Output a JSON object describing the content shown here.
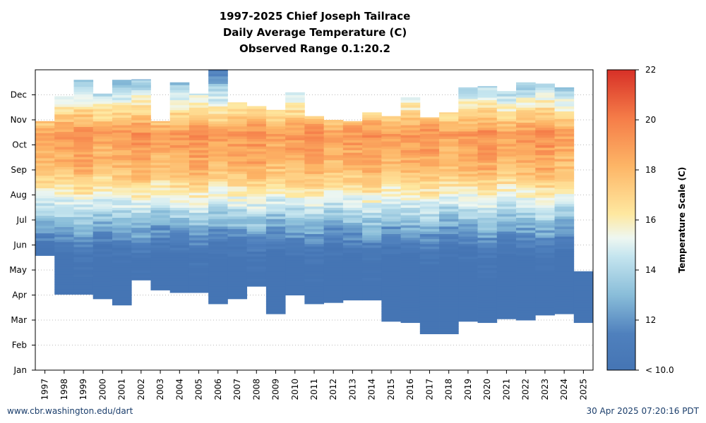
{
  "chart_data": {
    "type": "heatmap",
    "title": [
      "1997-2025 Chief Joseph Tailrace",
      "Daily Average Temperature (C)",
      "Observed Range 0.1:20.2"
    ],
    "x": [
      "1997",
      "1998",
      "1999",
      "2000",
      "2001",
      "2002",
      "2003",
      "2004",
      "2005",
      "2006",
      "2007",
      "2008",
      "2009",
      "2010",
      "2011",
      "2012",
      "2013",
      "2014",
      "2015",
      "2016",
      "2017",
      "2018",
      "2019",
      "2020",
      "2021",
      "2022",
      "2023",
      "2024",
      "2025"
    ],
    "y_ticks": [
      "Jan",
      "Feb",
      "Mar",
      "Apr",
      "May",
      "Jun",
      "Jul",
      "Aug",
      "Sep",
      "Oct",
      "Nov",
      "Dec"
    ],
    "colorbar": {
      "label": "Temperature Scale (C)",
      "min": 10,
      "max": 22,
      "ticks": [
        "< 10.0",
        "12",
        "14",
        "16",
        "18",
        "20",
        "22"
      ],
      "colors": [
        "#4575b4",
        "#74add1",
        "#abd9e9",
        "#e0f3f8",
        "#fee090",
        "#fdae61",
        "#f46d43",
        "#d73027"
      ]
    },
    "coverage_months": [
      {
        "year": "1997",
        "start": 4.58,
        "end": 9.95
      },
      {
        "year": "1998",
        "start": 3.03,
        "end": 10.95
      },
      {
        "year": "1999",
        "start": 3.03,
        "end": 11.6
      },
      {
        "year": "2000",
        "start": 2.85,
        "end": 11.05
      },
      {
        "year": "2001",
        "start": 2.6,
        "end": 11.6
      },
      {
        "year": "2002",
        "start": 3.6,
        "end": 11.62
      },
      {
        "year": "2003",
        "start": 3.2,
        "end": 9.95
      },
      {
        "year": "2004",
        "start": 3.1,
        "end": 11.5
      },
      {
        "year": "2005",
        "start": 3.1,
        "end": 11.05
      },
      {
        "year": "2006",
        "start": 2.65,
        "end": 12.0
      },
      {
        "year": "2007",
        "start": 2.85,
        "end": 10.7
      },
      {
        "year": "2008",
        "start": 3.35,
        "end": 10.55
      },
      {
        "year": "2009",
        "start": 2.25,
        "end": 10.4
      },
      {
        "year": "2010",
        "start": 3.0,
        "end": 11.1
      },
      {
        "year": "2011",
        "start": 2.65,
        "end": 10.15
      },
      {
        "year": "2012",
        "start": 2.7,
        "end": 10.0
      },
      {
        "year": "2013",
        "start": 2.8,
        "end": 9.95
      },
      {
        "year": "2014",
        "start": 2.8,
        "end": 10.3
      },
      {
        "year": "2015",
        "start": 1.95,
        "end": 10.15
      },
      {
        "year": "2016",
        "start": 1.9,
        "end": 10.9
      },
      {
        "year": "2017",
        "start": 1.45,
        "end": 10.1
      },
      {
        "year": "2018",
        "start": 1.45,
        "end": 10.3
      },
      {
        "year": "2019",
        "start": 1.95,
        "end": 11.3
      },
      {
        "year": "2020",
        "start": 1.9,
        "end": 11.35
      },
      {
        "year": "2021",
        "start": 2.05,
        "end": 11.15
      },
      {
        "year": "2022",
        "start": 2.0,
        "end": 11.5
      },
      {
        "year": "2023",
        "start": 2.2,
        "end": 11.45
      },
      {
        "year": "2024",
        "start": 2.25,
        "end": 11.3
      },
      {
        "year": "2025",
        "start": 1.9,
        "end": 3.95
      }
    ],
    "legend": "colorbar-right",
    "grid": "horizontal-dotted"
  },
  "footer": {
    "left": "www.cbr.washington.edu/dart",
    "right": "30 Apr 2025 07:20:16 PDT"
  }
}
